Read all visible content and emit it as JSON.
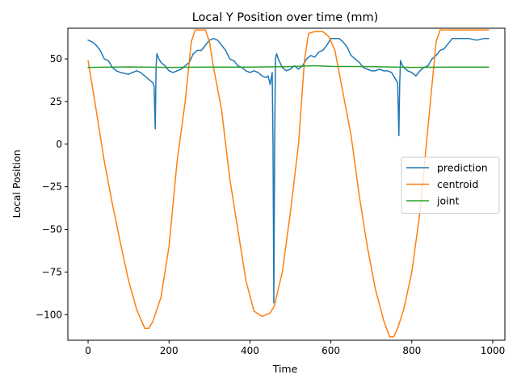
{
  "chart_data": {
    "type": "line",
    "title": "Local Y Position over time (mm)",
    "xlabel": "Time",
    "ylabel": "Local Position",
    "xlim": [
      -50,
      1030
    ],
    "ylim": [
      -115,
      68
    ],
    "xticks": [
      0,
      200,
      400,
      600,
      800,
      1000
    ],
    "yticks": [
      -100,
      -75,
      -50,
      -25,
      0,
      25,
      50
    ],
    "grid": false,
    "legend_position": "center-right",
    "series": [
      {
        "name": "prediction",
        "color": "#1f77b4",
        "points": [
          [
            0,
            61
          ],
          [
            10,
            60
          ],
          [
            20,
            58
          ],
          [
            30,
            55
          ],
          [
            40,
            50
          ],
          [
            50,
            49
          ],
          [
            60,
            45
          ],
          [
            70,
            43
          ],
          [
            80,
            42
          ],
          [
            90,
            41.5
          ],
          [
            100,
            41
          ],
          [
            110,
            42
          ],
          [
            120,
            43
          ],
          [
            130,
            42
          ],
          [
            140,
            40
          ],
          [
            150,
            38
          ],
          [
            160,
            36
          ],
          [
            163,
            34
          ],
          [
            166,
            9
          ],
          [
            168,
            45
          ],
          [
            170,
            53
          ],
          [
            175,
            50
          ],
          [
            180,
            48
          ],
          [
            190,
            46
          ],
          [
            200,
            43
          ],
          [
            210,
            42
          ],
          [
            220,
            43
          ],
          [
            230,
            44
          ],
          [
            240,
            46
          ],
          [
            250,
            48
          ],
          [
            260,
            53
          ],
          [
            270,
            55
          ],
          [
            280,
            55
          ],
          [
            290,
            58
          ],
          [
            300,
            61
          ],
          [
            310,
            62
          ],
          [
            320,
            61
          ],
          [
            330,
            58
          ],
          [
            340,
            55
          ],
          [
            350,
            50
          ],
          [
            360,
            49
          ],
          [
            370,
            46
          ],
          [
            380,
            45
          ],
          [
            390,
            43
          ],
          [
            400,
            42
          ],
          [
            410,
            43
          ],
          [
            420,
            42
          ],
          [
            430,
            40
          ],
          [
            440,
            39
          ],
          [
            445,
            40
          ],
          [
            450,
            35
          ],
          [
            455,
            42
          ],
          [
            457,
            0
          ],
          [
            459,
            -93
          ],
          [
            461,
            0
          ],
          [
            463,
            50
          ],
          [
            466,
            53
          ],
          [
            470,
            50
          ],
          [
            480,
            45
          ],
          [
            490,
            43
          ],
          [
            500,
            44
          ],
          [
            510,
            46
          ],
          [
            520,
            44
          ],
          [
            530,
            46
          ],
          [
            540,
            50
          ],
          [
            550,
            52
          ],
          [
            560,
            51
          ],
          [
            570,
            54
          ],
          [
            580,
            55
          ],
          [
            590,
            58
          ],
          [
            600,
            62
          ],
          [
            610,
            62
          ],
          [
            620,
            62
          ],
          [
            630,
            60
          ],
          [
            640,
            57
          ],
          [
            650,
            52
          ],
          [
            660,
            50
          ],
          [
            670,
            48
          ],
          [
            680,
            45
          ],
          [
            690,
            44
          ],
          [
            700,
            43
          ],
          [
            710,
            43
          ],
          [
            720,
            44
          ],
          [
            730,
            43
          ],
          [
            740,
            43
          ],
          [
            750,
            42
          ],
          [
            760,
            38
          ],
          [
            765,
            36
          ],
          [
            768,
            5
          ],
          [
            770,
            35
          ],
          [
            772,
            49
          ],
          [
            775,
            47
          ],
          [
            780,
            45
          ],
          [
            790,
            43
          ],
          [
            800,
            42
          ],
          [
            810,
            40
          ],
          [
            820,
            43
          ],
          [
            830,
            45
          ],
          [
            840,
            46
          ],
          [
            850,
            50
          ],
          [
            860,
            52
          ],
          [
            870,
            55
          ],
          [
            880,
            56
          ],
          [
            890,
            59
          ],
          [
            900,
            62
          ],
          [
            920,
            62
          ],
          [
            940,
            62
          ],
          [
            960,
            61
          ],
          [
            980,
            62
          ],
          [
            990,
            62
          ]
        ]
      },
      {
        "name": "centroid",
        "color": "#ff7f0e",
        "points": [
          [
            0,
            49
          ],
          [
            20,
            20
          ],
          [
            40,
            -10
          ],
          [
            60,
            -35
          ],
          [
            80,
            -58
          ],
          [
            100,
            -80
          ],
          [
            120,
            -97
          ],
          [
            140,
            -108
          ],
          [
            150,
            -108
          ],
          [
            160,
            -104
          ],
          [
            180,
            -90
          ],
          [
            200,
            -60
          ],
          [
            220,
            -10
          ],
          [
            240,
            25
          ],
          [
            255,
            60
          ],
          [
            265,
            67
          ],
          [
            280,
            67
          ],
          [
            290,
            67
          ],
          [
            300,
            60
          ],
          [
            310,
            45
          ],
          [
            330,
            20
          ],
          [
            350,
            -20
          ],
          [
            370,
            -50
          ],
          [
            390,
            -80
          ],
          [
            410,
            -98
          ],
          [
            430,
            -101
          ],
          [
            450,
            -99
          ],
          [
            460,
            -95
          ],
          [
            480,
            -75
          ],
          [
            500,
            -40
          ],
          [
            520,
            0
          ],
          [
            535,
            50
          ],
          [
            545,
            65
          ],
          [
            560,
            66
          ],
          [
            580,
            66
          ],
          [
            595,
            63
          ],
          [
            610,
            55
          ],
          [
            630,
            30
          ],
          [
            650,
            5
          ],
          [
            670,
            -30
          ],
          [
            690,
            -60
          ],
          [
            710,
            -85
          ],
          [
            730,
            -103
          ],
          [
            745,
            -113
          ],
          [
            755,
            -113
          ],
          [
            765,
            -108
          ],
          [
            780,
            -97
          ],
          [
            800,
            -75
          ],
          [
            820,
            -40
          ],
          [
            840,
            10
          ],
          [
            860,
            60
          ],
          [
            870,
            67
          ],
          [
            990,
            67
          ]
        ]
      },
      {
        "name": "joint",
        "color": "#2ca02c",
        "points": [
          [
            0,
            45
          ],
          [
            100,
            45.3
          ],
          [
            200,
            45
          ],
          [
            300,
            45.2
          ],
          [
            400,
            45.2
          ],
          [
            500,
            45.5
          ],
          [
            560,
            46
          ],
          [
            600,
            45.6
          ],
          [
            700,
            45.5
          ],
          [
            800,
            45
          ],
          [
            900,
            45.2
          ],
          [
            990,
            45.2
          ]
        ]
      }
    ]
  }
}
